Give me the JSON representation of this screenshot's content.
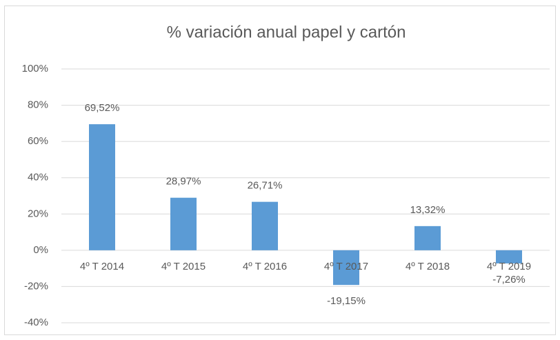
{
  "chart_data": {
    "type": "bar",
    "title": "% variación anual papel y cartón",
    "categories": [
      "4º T 2014",
      "4º T 2015",
      "4º T 2016",
      "4º T 2017",
      "4º T 2018",
      "4º T 2019"
    ],
    "values": [
      69.52,
      28.97,
      26.71,
      -19.15,
      13.32,
      -7.26
    ],
    "value_labels": [
      "69,52%",
      "28,97%",
      "26,71%",
      "-19,15%",
      "13,32%",
      "-7,26%"
    ],
    "color": "#5b9bd5",
    "ylim": [
      -40,
      100
    ],
    "yticks": [
      {
        "value": -40,
        "label": "-40%"
      },
      {
        "value": -20,
        "label": "-20%"
      },
      {
        "value": 0,
        "label": "0%"
      },
      {
        "value": 20,
        "label": "20%"
      },
      {
        "value": 40,
        "label": "40%"
      },
      {
        "value": 60,
        "label": "60%"
      },
      {
        "value": 80,
        "label": "80%"
      },
      {
        "value": 100,
        "label": "100%"
      }
    ],
    "grid": true
  }
}
